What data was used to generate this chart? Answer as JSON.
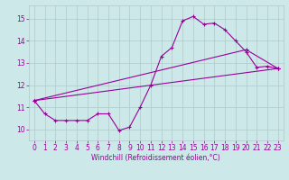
{
  "bg_color": "#cce8e8",
  "grid_color": "#b0c8c8",
  "line_color": "#990099",
  "marker": "+",
  "xlabel": "Windchill (Refroidissement éolien,°C)",
  "xlim": [
    -0.5,
    23.5
  ],
  "ylim": [
    9.5,
    15.6
  ],
  "yticks": [
    10,
    11,
    12,
    13,
    14,
    15
  ],
  "xticks": [
    0,
    1,
    2,
    3,
    4,
    5,
    6,
    7,
    8,
    9,
    10,
    11,
    12,
    13,
    14,
    15,
    16,
    17,
    18,
    19,
    20,
    21,
    22,
    23
  ],
  "series_x": [
    0,
    1,
    2,
    3,
    4,
    5,
    6,
    7,
    8,
    9,
    10,
    11,
    12,
    13,
    14,
    15,
    16,
    17,
    18,
    19,
    20,
    21,
    22,
    23
  ],
  "series_y": [
    11.3,
    10.7,
    10.4,
    10.4,
    10.4,
    10.4,
    10.7,
    10.7,
    9.95,
    10.1,
    11.0,
    12.0,
    13.3,
    13.7,
    14.9,
    15.1,
    14.75,
    14.8,
    14.5,
    14.0,
    13.5,
    12.8,
    12.85,
    12.75
  ],
  "line2_x": [
    0,
    23
  ],
  "line2_y": [
    11.3,
    12.75
  ],
  "line3_x": [
    0,
    20,
    23
  ],
  "line3_y": [
    11.3,
    13.6,
    12.75
  ],
  "xlabel_fontsize": 5.5,
  "tick_fontsize": 5.5,
  "linewidth": 0.8,
  "markersize": 3.5
}
